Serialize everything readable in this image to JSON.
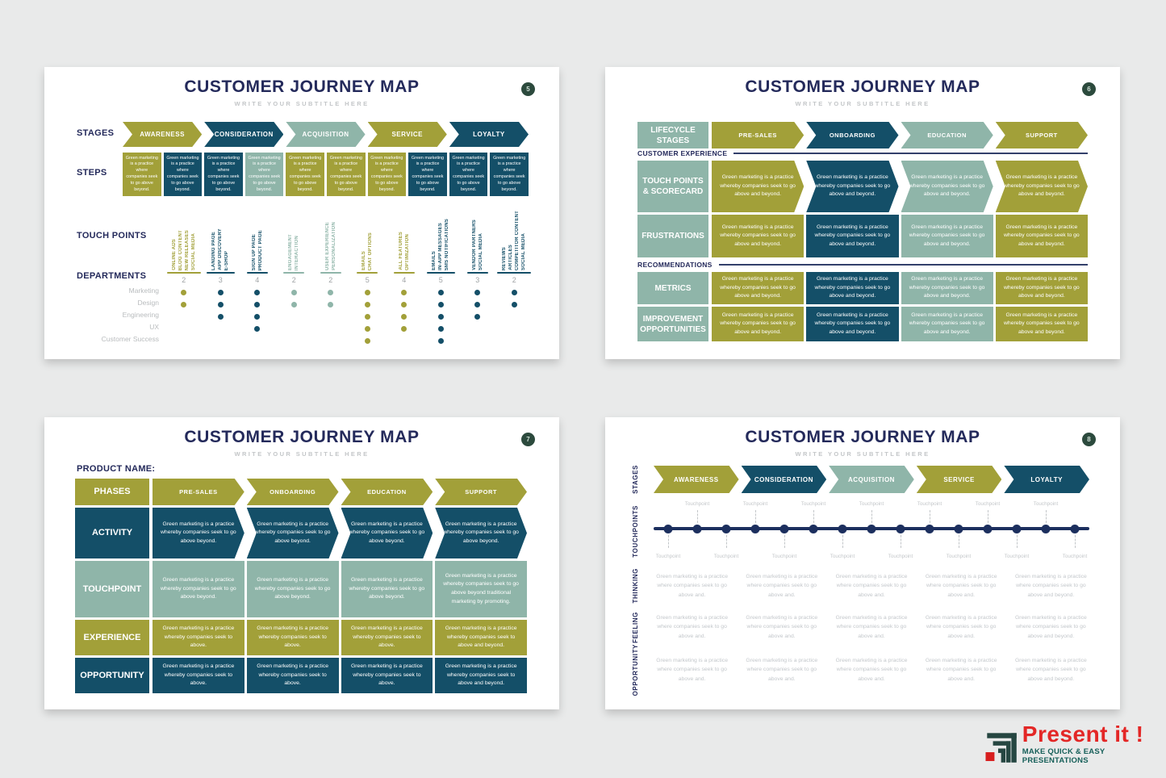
{
  "page": {
    "background": "#e9eaea"
  },
  "colors": {
    "olive": "#a2a039",
    "navy": "#144f68",
    "sage": "#8fb5a9",
    "title_navy": "#242a5b",
    "badge_green": "#2c4a3d",
    "logo_red": "#e32726",
    "logo_teal": "#17605a"
  },
  "common": {
    "title": "CUSTOMER JOURNEY MAP",
    "subtitle": "WRITE YOUR SUBTITLE HERE"
  },
  "slide5": {
    "badge": "5",
    "row_labels": {
      "stages": "STAGES",
      "steps": "STEPS",
      "touch_points": "TOUCH POINTS",
      "departments": "DEPARTMENTS"
    },
    "stages": [
      {
        "label": "AWARENESS",
        "color": "olive"
      },
      {
        "label": "CONSIDERATION",
        "color": "navy"
      },
      {
        "label": "ACQUISITION",
        "color": "sage"
      },
      {
        "label": "SERVICE",
        "color": "olive"
      },
      {
        "label": "LOYALTY",
        "color": "navy"
      }
    ],
    "step_text": "Green marketing is a practice where companies seek to go above beyond.",
    "step_colors": [
      "olive",
      "navy",
      "navy",
      "sage",
      "olive",
      "olive",
      "olive",
      "navy",
      "navy",
      "navy"
    ],
    "departments": [
      "Marketing",
      "Design",
      "Engineering",
      "UX",
      "Customer Success"
    ],
    "touchpoint_groups": [
      {
        "color": "olive",
        "labels": [
          "ONLINE ADS",
          "BLOG CONTENT",
          "NEW RELEASES",
          "SOCIAL MEDIA"
        ],
        "count": "2",
        "dept_dots": [
          1,
          1,
          0,
          0,
          0
        ]
      },
      {
        "color": "navy",
        "labels": [
          "LANDING PAGE",
          "APP DISCOVERY",
          "E-SHOP"
        ],
        "count": "3",
        "dept_dots": [
          1,
          1,
          1,
          0,
          0
        ]
      },
      {
        "color": "navy",
        "labels": [
          "SIGN UP PAGE",
          "PRODUCT PAGE"
        ],
        "count": "4",
        "dept_dots": [
          1,
          1,
          1,
          1,
          0
        ]
      },
      {
        "color": "sage",
        "labels": [
          "ENGAGEMENT",
          "INTERACTION"
        ],
        "count": "2",
        "dept_dots": [
          1,
          1,
          0,
          0,
          0
        ]
      },
      {
        "color": "sage",
        "labels": [
          "USER EXPERIENCE",
          "PERSONALIZATION"
        ],
        "count": "2",
        "dept_dots": [
          1,
          1,
          0,
          0,
          0
        ]
      },
      {
        "color": "olive",
        "labels": [
          "EMAILS",
          "CHAT OPTIONS"
        ],
        "count": "5",
        "dept_dots": [
          1,
          1,
          1,
          1,
          1
        ]
      },
      {
        "color": "olive",
        "labels": [
          "ALL FEATURES",
          "OPTIMIZATION"
        ],
        "count": "4",
        "dept_dots": [
          1,
          1,
          1,
          1,
          0
        ]
      },
      {
        "color": "navy",
        "labels": [
          "EMAILS",
          "IN-APP MESSAGES",
          "SMS NOTIFICATIONS"
        ],
        "count": "5",
        "dept_dots": [
          1,
          1,
          1,
          1,
          1
        ]
      },
      {
        "color": "navy",
        "labels": [
          "VENDOR PARTNERS",
          "SOCIAL MEDIA"
        ],
        "count": "3",
        "dept_dots": [
          1,
          1,
          1,
          0,
          0
        ]
      },
      {
        "color": "navy",
        "labels": [
          "REVIEWS",
          "ARTICLES",
          "COMPETITOR CONTENT",
          "SOCIAL MEDIA"
        ],
        "count": "2",
        "dept_dots": [
          1,
          1,
          0,
          0,
          0
        ]
      }
    ]
  },
  "slide6": {
    "badge": "6",
    "header_label": "LIFECYCLE STAGES",
    "stages": [
      {
        "label": "PRE-SALES",
        "color": "olive"
      },
      {
        "label": "ONBOARDING",
        "color": "navy"
      },
      {
        "label": "EDUCATION",
        "color": "sage"
      },
      {
        "label": "SUPPORT",
        "color": "olive"
      }
    ],
    "section1": "CUSTOMER EXPERIENCE",
    "section2": "RECOMMENDATIONS",
    "cell_text": "Green marketing is a practice whereby companies seek to go above and beyond.",
    "cell_colors": [
      "olive",
      "navy",
      "sage",
      "olive"
    ],
    "rows": [
      {
        "label": "TOUCH POINTS & SCORECARD",
        "shape": "arrow"
      },
      {
        "label": "FRUSTRATIONS",
        "shape": "rect"
      },
      {
        "label": "METRICS",
        "shape": "rect"
      },
      {
        "label": "IMPROVEMENT OPPORTUNITIES",
        "shape": "rect"
      }
    ]
  },
  "slide7": {
    "badge": "7",
    "product_label": "PRODUCT NAME:",
    "header_label": "PHASES",
    "phases": [
      "PRE-SALES",
      "ONBOARDING",
      "EDUCATION",
      "SUPPORT"
    ],
    "rows": [
      {
        "label": "ACTIVITY",
        "color": "navy",
        "shape": "arrow",
        "cells": [
          "Green marketing is a practice whereby companies seek to go above beyond.",
          "Green marketing is a practice whereby companies seek to go above beyond.",
          "Green marketing is a practice whereby companies seek to go above beyond.",
          "Green marketing is a practice whereby companies seek to go above beyond."
        ]
      },
      {
        "label": "TOUCHPOINT",
        "color": "sage",
        "shape": "rect",
        "cells": [
          "Green marketing is a practice whereby companies seek to go above beyond.",
          "Green marketing is a practice whereby companies seek to go above beyond.",
          "Green marketing is a practice whereby companies seek to go above beyond.",
          "Green marketing is a practice whereby companies seek to go above beyond traditional marketing by promoting."
        ]
      },
      {
        "label": "EXPERIENCE",
        "color": "olive",
        "shape": "rect",
        "cells": [
          "Green marketing is a practice whereby companies seek to above.",
          "Green marketing is a practice whereby companies seek to above.",
          "Green marketing is a practice whereby companies seek to above.",
          "Green marketing is a practice whereby companies seek to above and beyond."
        ]
      },
      {
        "label": "OPPORTUNITY",
        "color": "navy",
        "shape": "rect",
        "cells": [
          "Green marketing is a practice whereby companies seek to above.",
          "Green marketing is a practice whereby companies seek to above.",
          "Green marketing is a practice whereby companies seek to above.",
          "Green marketing is a practice whereby companies seek to above and beyond."
        ]
      }
    ]
  },
  "slide8": {
    "badge": "8",
    "side_labels": {
      "stages": "STAGES",
      "touchpoints": "TOUCHPOINTS"
    },
    "stages": [
      {
        "label": "AWARENESS",
        "color": "olive"
      },
      {
        "label": "CONSIDERATION",
        "color": "navy"
      },
      {
        "label": "ACQUISITION",
        "color": "sage"
      },
      {
        "label": "SERVICE",
        "color": "olive"
      },
      {
        "label": "LOYALTY",
        "color": "navy"
      }
    ],
    "timeline": {
      "dot_count": 15,
      "tag_label": "Touchpoint"
    },
    "rows": [
      {
        "label": "THINKING",
        "cells": [
          "Green marketing is a practice where companies seek to go above and.",
          "Green marketing is a practice where companies seek to go above and.",
          "Green marketing is a practice where companies seek to go above and.",
          "Green marketing is a practice where companies seek to go above and.",
          "Green marketing is a practice where companies seek to go above and beyond."
        ]
      },
      {
        "label": "FEELING",
        "cells": [
          "Green marketing is a practice where companies seek to go above and.",
          "Green marketing is a practice where companies seek to go above and.",
          "Green marketing is a practice where companies seek to go above and.",
          "Green marketing is a practice where companies seek to go above and.",
          "Green marketing is a practice where companies seek to go above and beyond."
        ]
      },
      {
        "label": "OPPORTUNITY",
        "cells": [
          "Green marketing is a practice where companies seek to go above and.",
          "Green marketing is a practice where companies seek to go above and.",
          "Green marketing is a practice where companies seek to go above and.",
          "Green marketing is a practice where companies seek to go above and.",
          "Green marketing is a practice where companies seek to go above and beyond."
        ]
      }
    ]
  },
  "logo": {
    "title": "Present it !",
    "tagline": "MAKE QUICK & EASY PRESENTATIONS"
  }
}
